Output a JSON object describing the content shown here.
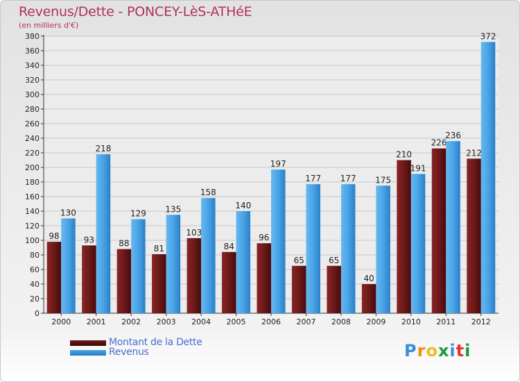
{
  "header": {
    "title": "Revenus/Dette - PONCEY-LèS-ATHéE",
    "subtitle": "(en milliers d'€)"
  },
  "legend": {
    "debt_label": "Montant de la Dette",
    "revenue_label": "Revenus"
  },
  "logo": {
    "letters": [
      "P",
      "r",
      "o",
      "x",
      "i",
      "t",
      "i"
    ],
    "colors": [
      "#3a8fd8",
      "#f08a1a",
      "#e8c020",
      "#1a9a3a",
      "#3a8fd8",
      "#e83030",
      "#1a9a3a"
    ]
  },
  "colors": {
    "debt": "#6b1a1a",
    "revenue": "#4aa3e6",
    "title": "#b03060"
  },
  "chart_data": {
    "type": "bar",
    "title": "Revenus/Dette - PONCEY-LèS-ATHéE",
    "subtitle": "(en milliers d'€)",
    "categories": [
      "2000",
      "2001",
      "2002",
      "2003",
      "2004",
      "2005",
      "2006",
      "2007",
      "2008",
      "2009",
      "2010",
      "2011",
      "2012"
    ],
    "series": [
      {
        "name": "Montant de la Dette",
        "values": [
          98,
          93,
          88,
          81,
          103,
          84,
          96,
          65,
          65,
          40,
          210,
          226,
          212
        ]
      },
      {
        "name": "Revenus",
        "values": [
          130,
          218,
          129,
          135,
          158,
          140,
          197,
          177,
          177,
          175,
          191,
          236,
          372
        ]
      }
    ],
    "ylim": [
      0,
      380
    ],
    "yticks": [
      0,
      20,
      40,
      60,
      80,
      100,
      120,
      140,
      160,
      180,
      200,
      220,
      240,
      260,
      280,
      300,
      320,
      340,
      360,
      380
    ],
    "grid": true,
    "legend_position": "bottom-left"
  }
}
